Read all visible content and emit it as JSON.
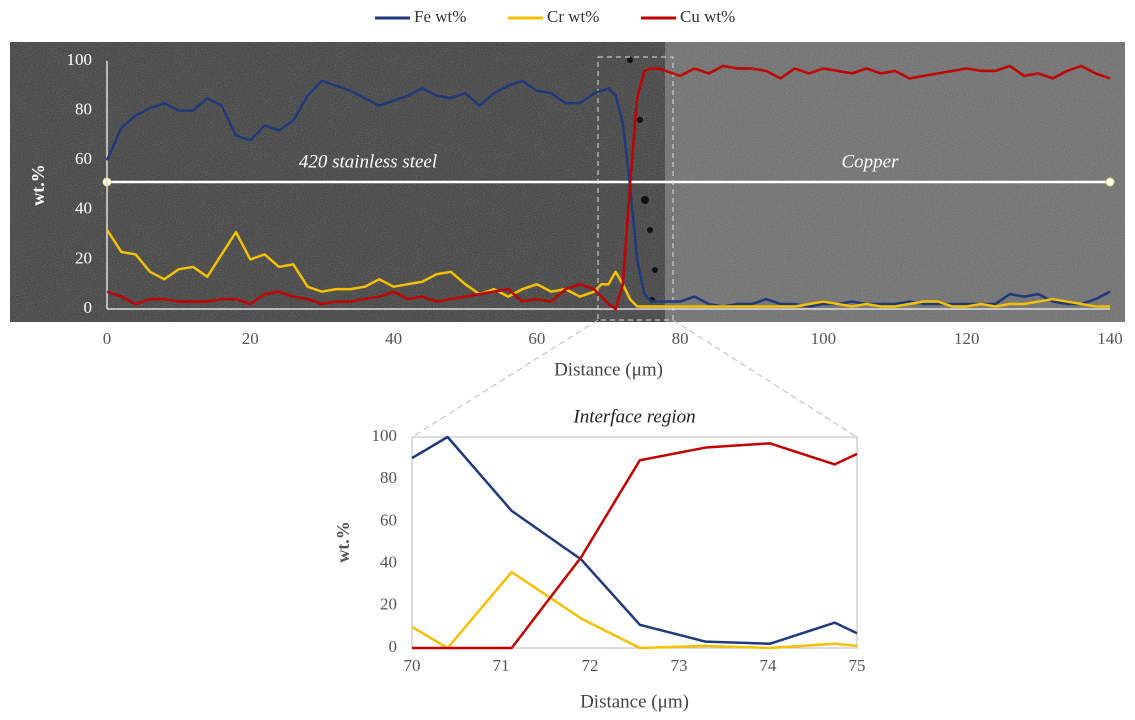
{
  "chart_data": [
    {
      "type": "line",
      "legend": "top",
      "xlabel": "Distance (μm)",
      "ylabel": "wt.%",
      "annotations": [
        "420 stainless steel",
        "Copper"
      ],
      "x": [
        0,
        2,
        4,
        6,
        8,
        10,
        12,
        14,
        16,
        18,
        20,
        22,
        24,
        26,
        28,
        30,
        32,
        34,
        36,
        38,
        40,
        42,
        44,
        46,
        48,
        50,
        52,
        54,
        56,
        58,
        60,
        62,
        64,
        66,
        68,
        69,
        70,
        71,
        72,
        73,
        74,
        75,
        76,
        77,
        78,
        80,
        82,
        84,
        86,
        88,
        90,
        92,
        94,
        96,
        98,
        100,
        102,
        104,
        106,
        108,
        110,
        112,
        114,
        116,
        118,
        120,
        122,
        124,
        126,
        128,
        130,
        132,
        134,
        136,
        138,
        140
      ],
      "xlim": [
        0,
        140
      ],
      "xticks": [
        0,
        20,
        40,
        60,
        80,
        100,
        120,
        140
      ],
      "ylim": [
        0,
        100
      ],
      "yticks": [
        0,
        20,
        40,
        60,
        80,
        100
      ],
      "series": [
        {
          "name": "Fe wt%",
          "color": "#1f3a7a",
          "values": [
            60,
            73,
            78,
            81,
            83,
            80,
            80,
            85,
            82,
            70,
            68,
            74,
            72,
            76,
            86,
            92,
            90,
            88,
            85,
            82,
            84,
            86,
            89,
            86,
            85,
            87,
            82,
            87,
            90,
            92,
            88,
            87,
            83,
            83,
            87,
            88,
            89,
            86,
            75,
            50,
            20,
            6,
            3,
            3,
            3,
            3,
            5,
            2,
            1,
            2,
            2,
            4,
            2,
            2,
            1,
            2,
            2,
            3,
            2,
            2,
            2,
            3,
            2,
            2,
            2,
            2,
            2,
            2,
            6,
            5,
            6,
            3,
            2,
            2,
            4,
            7
          ]
        },
        {
          "name": "Cr wt%",
          "color": "#f5c000",
          "values": [
            32,
            23,
            22,
            15,
            12,
            16,
            17,
            13,
            22,
            31,
            20,
            22,
            17,
            18,
            9,
            7,
            8,
            8,
            9,
            12,
            9,
            10,
            11,
            14,
            15,
            10,
            6,
            8,
            5,
            8,
            10,
            7,
            8,
            5,
            7,
            10,
            10,
            15,
            10,
            4,
            1,
            1,
            1,
            1,
            1,
            1,
            1,
            1,
            1,
            1,
            1,
            1,
            1,
            1,
            2,
            3,
            2,
            1,
            2,
            1,
            1,
            2,
            3,
            3,
            1,
            1,
            2,
            1,
            2,
            2,
            3,
            4,
            3,
            2,
            1,
            1
          ]
        },
        {
          "name": "Cu wt%",
          "color": "#c00000",
          "values": [
            7,
            5,
            2,
            4,
            4,
            3,
            3,
            3,
            4,
            4,
            2,
            6,
            7,
            5,
            4,
            2,
            3,
            3,
            4,
            5,
            7,
            4,
            5,
            3,
            4,
            5,
            6,
            7,
            8,
            3,
            4,
            3,
            8,
            10,
            8,
            5,
            2,
            0,
            10,
            50,
            85,
            96,
            97,
            97,
            96,
            94,
            97,
            95,
            98,
            97,
            97,
            96,
            93,
            97,
            95,
            97,
            96,
            95,
            97,
            95,
            96,
            93,
            94,
            95,
            96,
            97,
            96,
            96,
            98,
            94,
            95,
            93,
            96,
            98,
            95,
            93
          ]
        }
      ]
    },
    {
      "type": "line",
      "title": "Interface region",
      "xlabel": "Distance (μm)",
      "ylabel": "wt.%",
      "x": [
        70,
        70.4,
        71.12,
        71.9,
        72.56,
        73.3,
        74.02,
        74.75,
        75
      ],
      "xlim": [
        70,
        75
      ],
      "xticks": [
        70,
        71,
        72,
        73,
        74,
        75
      ],
      "ylim": [
        0,
        100
      ],
      "yticks": [
        0,
        20,
        40,
        60,
        80,
        100
      ],
      "series": [
        {
          "name": "Fe wt%",
          "color": "#1f3a7a",
          "values": [
            90,
            100,
            65,
            42,
            11,
            3,
            2,
            12,
            7
          ]
        },
        {
          "name": "Cr wt%",
          "color": "#f5c000",
          "values": [
            10,
            0,
            36,
            14,
            0,
            1,
            0,
            2,
            1
          ]
        },
        {
          "name": "Cu wt%",
          "color": "#c00000",
          "values": [
            0,
            0,
            0,
            43,
            89,
            95,
            97,
            87,
            92
          ]
        }
      ]
    }
  ]
}
